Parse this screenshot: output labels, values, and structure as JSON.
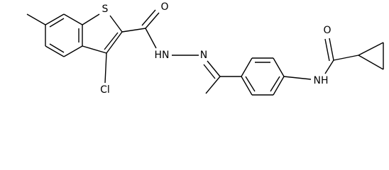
{
  "atoms": [
    {
      "label": "S"
    },
    {
      "label": "O"
    },
    {
      "label": "Cl"
    },
    {
      "label": "HN"
    },
    {
      "label": "N"
    },
    {
      "label": "NH"
    },
    {
      "label": "O"
    }
  ]
}
